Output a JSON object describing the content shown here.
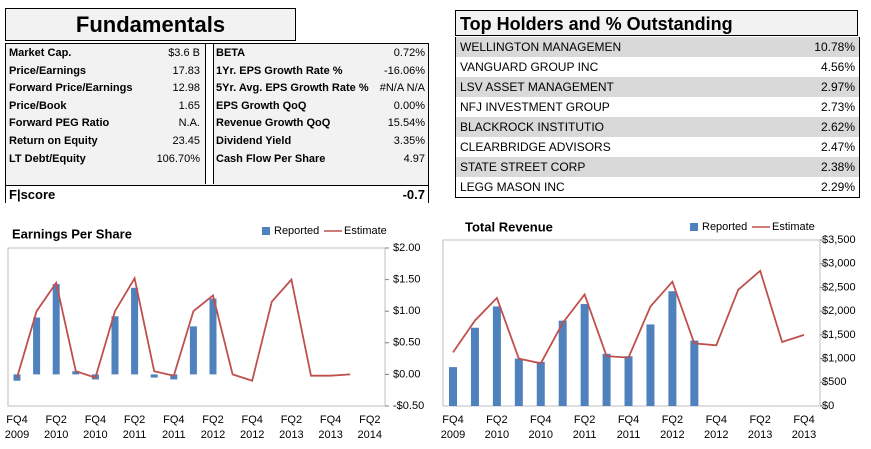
{
  "fundamentals": {
    "title": "Fundamentals",
    "rows": [
      [
        "Market Cap.",
        "$3.6 B",
        "BETA",
        "0.72%"
      ],
      [
        "Price/Earnings",
        "17.83",
        "1Yr. EPS Growth Rate %",
        "-16.06%"
      ],
      [
        "Forward Price/Earnings",
        "12.98",
        "5Yr. Avg. EPS Growth Rate %",
        "#N/A N/A"
      ],
      [
        "Price/Book",
        "1.65",
        "EPS Growth QoQ",
        "0.00%"
      ],
      [
        "Forward PEG Ratio",
        "N.A.",
        "Revenue Growth QoQ",
        "15.54%"
      ],
      [
        "Return on Equity",
        "23.45",
        "Dividend Yield",
        "3.35%"
      ],
      [
        "LT Debt/Equity",
        "106.70%",
        "Cash Flow Per Share",
        "4.97"
      ]
    ],
    "fscore": {
      "label": "F|score",
      "value": "-0.7"
    }
  },
  "holders": {
    "title": "Top Holders and % Outstanding",
    "rows": [
      [
        "WELLINGTON MANAGEMEN",
        "10.78%"
      ],
      [
        "VANGUARD GROUP INC",
        "4.56%"
      ],
      [
        "LSV ASSET MANAGEMENT",
        "2.97%"
      ],
      [
        "NFJ INVESTMENT GROUP",
        "2.73%"
      ],
      [
        "BLACKROCK INSTITUTIO",
        "2.62%"
      ],
      [
        "CLEARBRIDGE ADVISORS",
        "2.47%"
      ],
      [
        "STATE STREET CORP",
        "2.38%"
      ],
      [
        "LEGG MASON INC",
        "2.29%"
      ]
    ]
  },
  "chart_data": [
    {
      "type": "bar-line",
      "title": "Earnings Per Share",
      "categories": [
        "FQ4 2009",
        null,
        "FQ2 2010",
        null,
        "FQ4 2010",
        null,
        "FQ2 2011",
        null,
        "FQ4 2011",
        null,
        "FQ2 2012",
        null,
        "FQ4 2012",
        null,
        "FQ2 2013",
        null,
        "FQ4 2013",
        null,
        "FQ2 2014"
      ],
      "series": [
        {
          "name": "Reported",
          "color": "#4f81bd",
          "kind": "bar",
          "values": [
            -0.1,
            0.9,
            1.43,
            0.05,
            -0.08,
            0.92,
            1.37,
            -0.05,
            -0.08,
            0.76,
            1.2,
            null,
            null,
            null,
            null,
            null,
            null,
            null,
            null
          ]
        },
        {
          "name": "Estimate",
          "color": "#c0504d",
          "kind": "line",
          "values": [
            -0.05,
            1.0,
            1.45,
            0.05,
            -0.05,
            1.0,
            1.52,
            0.05,
            -0.02,
            1.0,
            1.25,
            0.0,
            -0.1,
            1.15,
            1.5,
            -0.02,
            -0.02,
            0.0,
            null
          ]
        }
      ],
      "ylim": [
        -0.5,
        2.0
      ],
      "yticks": [
        {
          "value": -0.5,
          "label": "-$0.50"
        },
        {
          "value": 0,
          "label": "$0.00"
        },
        {
          "value": 0.5,
          "label": "$0.50"
        },
        {
          "value": 1.0,
          "label": "$1.00"
        },
        {
          "value": 1.5,
          "label": "$1.50"
        },
        {
          "value": 2.0,
          "label": "$2.00"
        }
      ]
    },
    {
      "type": "bar-line",
      "title": "Total Revenue",
      "categories": [
        "FQ4 2009",
        null,
        "FQ2 2010",
        null,
        "FQ4 2010",
        null,
        "FQ2 2011",
        null,
        "FQ4 2011",
        null,
        "FQ2 2012",
        null,
        "FQ4 2012",
        null,
        "FQ2 2013",
        null,
        "FQ4 2013"
      ],
      "series": [
        {
          "name": "Reported",
          "color": "#4f81bd",
          "kind": "bar",
          "values": [
            820,
            1650,
            2100,
            1000,
            930,
            1800,
            2150,
            1100,
            1050,
            1720,
            2420,
            1380,
            null,
            null,
            null,
            null,
            null
          ]
        },
        {
          "name": "Estimate",
          "color": "#c0504d",
          "kind": "line",
          "values": [
            1130,
            1800,
            2280,
            1000,
            900,
            1750,
            2350,
            1050,
            1020,
            2100,
            2620,
            1320,
            1280,
            2450,
            2850,
            1350,
            1500
          ]
        }
      ],
      "ylim": [
        0,
        3500
      ],
      "yticks": [
        {
          "value": 0,
          "label": "$0"
        },
        {
          "value": 500,
          "label": "$500"
        },
        {
          "value": 1000,
          "label": "$1,000"
        },
        {
          "value": 1500,
          "label": "$1,500"
        },
        {
          "value": 2000,
          "label": "$2,000"
        },
        {
          "value": 2500,
          "label": "$2,500"
        },
        {
          "value": 3000,
          "label": "$3,000"
        },
        {
          "value": 3500,
          "label": "$3,500"
        }
      ]
    }
  ]
}
